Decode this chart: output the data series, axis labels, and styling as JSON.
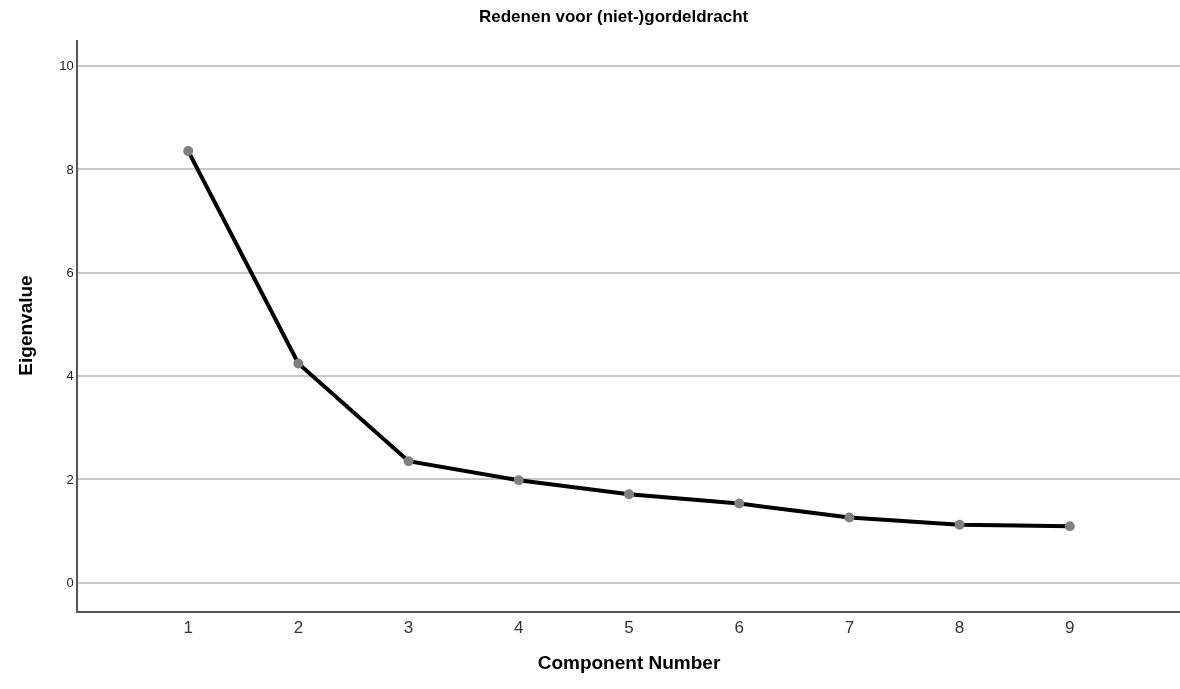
{
  "chart_data": {
    "type": "line",
    "title": "Redenen voor (niet-)gordeldracht",
    "xlabel": "Component Number",
    "ylabel": "Eigenvalue",
    "x": [
      1,
      2,
      3,
      4,
      5,
      6,
      7,
      8,
      9
    ],
    "series": [
      {
        "color": "#000000",
        "values": [
          8.35,
          4.24,
          2.35,
          1.98,
          1.71,
          1.53,
          1.26,
          1.12,
          1.09
        ]
      }
    ],
    "xlim": [
      0,
      10
    ],
    "xticks": [
      1,
      2,
      3,
      4,
      5,
      6,
      7,
      8,
      9
    ],
    "ylim": [
      -0.55,
      10.5
    ],
    "yticks": [
      0,
      2,
      4,
      6,
      8,
      10
    ],
    "grid": "y",
    "marker": "circle",
    "line_style": "solid"
  }
}
